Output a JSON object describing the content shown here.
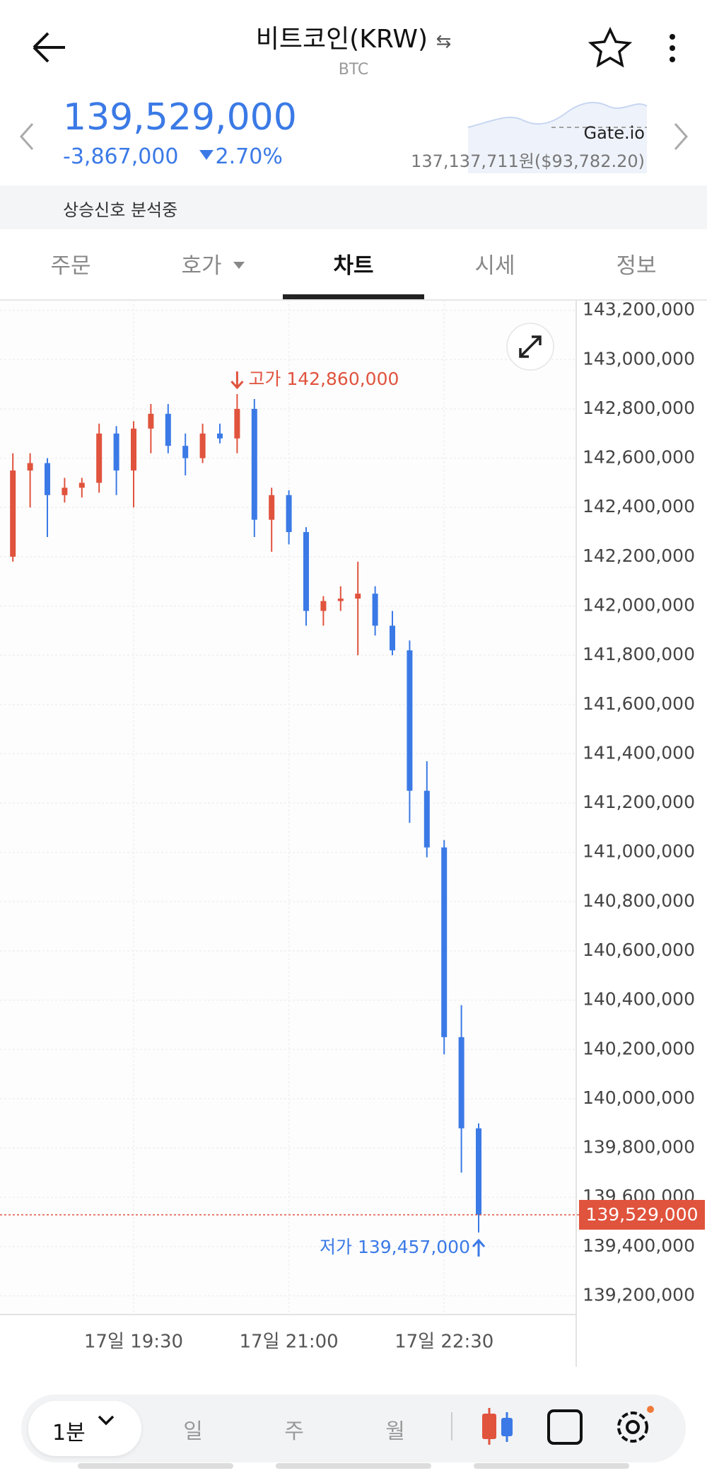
{
  "header": {
    "title": "비트코인(KRW)",
    "symbol": "BTC"
  },
  "price": {
    "current": "139,529,000",
    "change": "-3,867,000",
    "change_rate": "2.70%",
    "exchange": "Gate.io",
    "exchange_price": "137,137,711원($93,782.20)"
  },
  "signal": "상승신호 분석중",
  "tabs": [
    "주문",
    "호가",
    "차트",
    "시세",
    "정보"
  ],
  "chart_data": {
    "type": "candlestick",
    "categories": [
      null,
      null,
      null,
      null,
      null,
      null,
      null,
      "17일 19:30",
      null,
      null,
      null,
      null,
      null,
      null,
      null,
      null,
      "17일 21:00",
      null,
      null,
      null,
      null,
      null,
      null,
      null,
      null,
      "17일 22:30",
      null,
      null
    ],
    "open": [
      142200000,
      142550000,
      142580000,
      142450000,
      142480000,
      142500000,
      142700000,
      142550000,
      142720000,
      142780000,
      142650000,
      142600000,
      142700000,
      142680000,
      142800000,
      142350000,
      142450000,
      142300000,
      141980000,
      142020000,
      142030000,
      142050000,
      141920000,
      141820000,
      141250000,
      141020000,
      140250000,
      139880000
    ],
    "high": [
      142620000,
      142620000,
      142600000,
      142520000,
      142520000,
      142740000,
      142730000,
      142750000,
      142820000,
      142820000,
      142700000,
      142740000,
      142740000,
      142860000,
      142840000,
      142480000,
      142470000,
      142320000,
      142040000,
      142080000,
      142180000,
      142080000,
      141980000,
      141860000,
      141370000,
      141050000,
      140380000,
      139900000
    ],
    "low": [
      142180000,
      142400000,
      142280000,
      142420000,
      142440000,
      142460000,
      142450000,
      142400000,
      142620000,
      142620000,
      142530000,
      142580000,
      142660000,
      142620000,
      142280000,
      142220000,
      142250000,
      141920000,
      141920000,
      141980000,
      141800000,
      141880000,
      141800000,
      141120000,
      140980000,
      140180000,
      139700000,
      139457000
    ],
    "close": [
      142550000,
      142580000,
      142450000,
      142480000,
      142500000,
      142700000,
      142550000,
      142720000,
      142780000,
      142650000,
      142600000,
      142700000,
      142680000,
      142800000,
      142350000,
      142450000,
      142300000,
      141980000,
      142020000,
      142030000,
      142050000,
      141920000,
      141820000,
      141250000,
      141020000,
      140250000,
      139880000,
      139529000
    ],
    "up_color": "#e0533d",
    "down_color": "#3b7ae6",
    "ylim": [
      139124000,
      143242000
    ],
    "yticks": [
      {
        "value": 143200000,
        "label": "143,200,000"
      },
      {
        "value": 143000000,
        "label": "143,000,000"
      },
      {
        "value": 142800000,
        "label": "142,800,000"
      },
      {
        "value": 142600000,
        "label": "142,600,000"
      },
      {
        "value": 142400000,
        "label": "142,400,000"
      },
      {
        "value": 142200000,
        "label": "142,200,000"
      },
      {
        "value": 142000000,
        "label": "142,000,000"
      },
      {
        "value": 141800000,
        "label": "141,800,000"
      },
      {
        "value": 141600000,
        "label": "141,600,000"
      },
      {
        "value": 141400000,
        "label": "141,400,000"
      },
      {
        "value": 141200000,
        "label": "141,200,000"
      },
      {
        "value": 141000000,
        "label": "141,000,000"
      },
      {
        "value": 140800000,
        "label": "140,800,000"
      },
      {
        "value": 140600000,
        "label": "140,600,000"
      },
      {
        "value": 140400000,
        "label": "140,400,000"
      },
      {
        "value": 140200000,
        "label": "140,200,000"
      },
      {
        "value": 140000000,
        "label": "140,000,000"
      },
      {
        "value": 139800000,
        "label": "139,800,000"
      },
      {
        "value": 139600000,
        "label": "139,600,000"
      },
      {
        "value": 139400000,
        "label": "139,400,000"
      },
      {
        "value": 139200000,
        "label": "139,200,000"
      }
    ],
    "grid": true,
    "annotations": {
      "high_label": "고가 142,860,000",
      "low_label": "저가 139,457,000",
      "last_price": "139,529,000"
    }
  },
  "toolbar": {
    "interval": "1분",
    "periods": [
      "일",
      "주",
      "월"
    ]
  }
}
